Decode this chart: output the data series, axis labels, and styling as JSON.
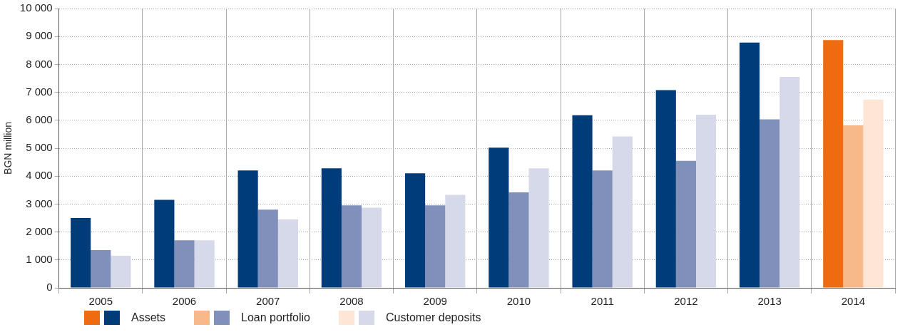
{
  "chart_data": {
    "type": "bar",
    "ylabel": "BGN million",
    "categories": [
      "2005",
      "2006",
      "2007",
      "2008",
      "2009",
      "2010",
      "2011",
      "2012",
      "2013",
      "2014"
    ],
    "series": [
      {
        "name": "Assets",
        "color": "#003b7a",
        "colors": [
          "#003b7a",
          "#003b7a",
          "#003b7a",
          "#003b7a",
          "#003b7a",
          "#003b7a",
          "#003b7a",
          "#003b7a",
          "#003b7a",
          "#ee6c0f"
        ],
        "values": [
          2500,
          3150,
          4200,
          4280,
          4100,
          5020,
          6180,
          7080,
          8780,
          8870
        ]
      },
      {
        "name": "Loan portfolio",
        "color": "#8090bb",
        "colors": [
          "#8090bb",
          "#8090bb",
          "#8090bb",
          "#8090bb",
          "#8090bb",
          "#8090bb",
          "#8090bb",
          "#8090bb",
          "#8090bb",
          "#f8b98a"
        ],
        "values": [
          1350,
          1700,
          2800,
          2950,
          2950,
          3420,
          4200,
          4550,
          6030,
          5820
        ]
      },
      {
        "name": "Customer deposits",
        "color": "#d6d9ea",
        "colors": [
          "#d6d9ea",
          "#d6d9ea",
          "#d6d9ea",
          "#d6d9ea",
          "#d6d9ea",
          "#d6d9ea",
          "#d6d9ea",
          "#d6d9ea",
          "#d6d9ea",
          "#fde6d6"
        ],
        "values": [
          1150,
          1700,
          2450,
          2870,
          3330,
          4280,
          5420,
          6200,
          7550,
          6740
        ]
      }
    ],
    "ylim": [
      0,
      10000
    ],
    "yticks": [
      0,
      {
        "value": 1000,
        "label": "1 000"
      },
      {
        "value": 2000,
        "label": "2 000"
      },
      {
        "value": 3000,
        "label": "3 000"
      },
      {
        "value": 4000,
        "label": "4 000"
      },
      {
        "value": 5000,
        "label": "5 000"
      },
      {
        "value": 6000,
        "label": "6 000"
      },
      {
        "value": 7000,
        "label": "7 000"
      },
      {
        "value": 8000,
        "label": "8 000"
      },
      {
        "value": 9000,
        "label": "9 000"
      },
      {
        "value": 10000,
        "label": "10 000"
      }
    ],
    "grid": true,
    "legend": "bottom left"
  }
}
